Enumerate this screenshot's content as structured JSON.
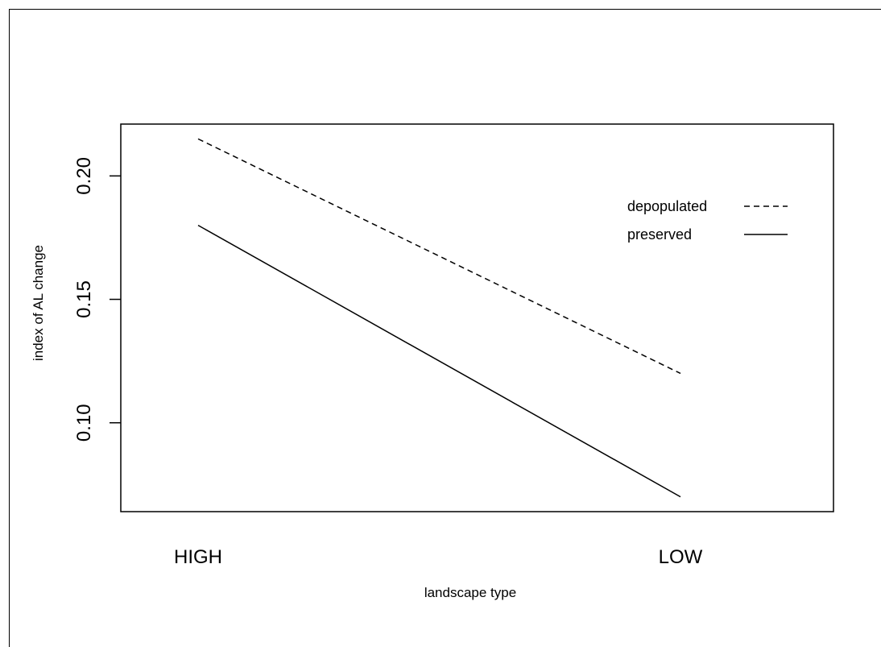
{
  "chart_data": {
    "type": "line",
    "title": "",
    "xlabel": "landscape type",
    "ylabel": "index of AL change",
    "categories": [
      "HIGH",
      "LOW"
    ],
    "series": [
      {
        "name": "depopulated",
        "values": [
          0.215,
          0.12
        ],
        "line_style": "dashed",
        "color": "#000000"
      },
      {
        "name": "preserved",
        "values": [
          0.18,
          0.07
        ],
        "line_style": "solid",
        "color": "#000000"
      }
    ],
    "ylim": [
      0.064,
      0.221
    ],
    "yticks": [
      "0.10",
      "0.15",
      "0.20"
    ],
    "legend_position": "top-right",
    "grid": false
  }
}
